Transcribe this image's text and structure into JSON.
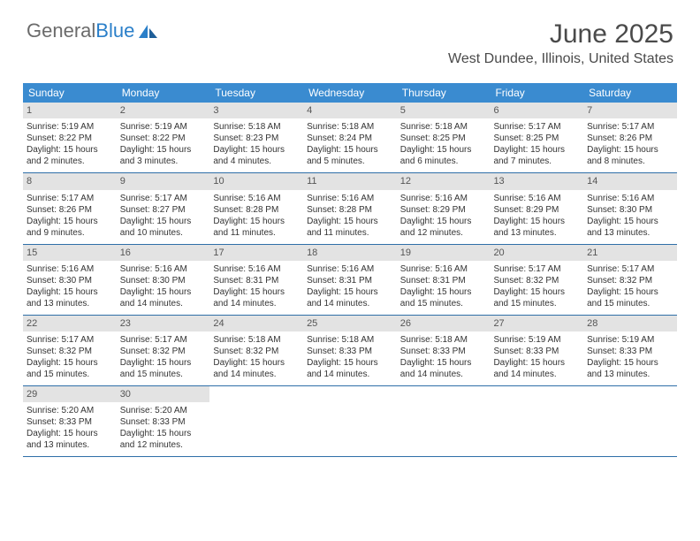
{
  "logo": {
    "part1": "General",
    "part2": "Blue"
  },
  "title": "June 2025",
  "location": "West Dundee, Illinois, United States",
  "colors": {
    "header_bg": "#3a8bd0",
    "row_border": "#2f6fa8",
    "daynum_bg": "#e3e3e3",
    "text": "#333333",
    "logo_grey": "#6b6b6b",
    "logo_blue": "#2a7fc9"
  },
  "daysOfWeek": [
    "Sunday",
    "Monday",
    "Tuesday",
    "Wednesday",
    "Thursday",
    "Friday",
    "Saturday"
  ],
  "weeks": [
    [
      {
        "n": "1",
        "sunrise": "5:19 AM",
        "sunset": "8:22 PM",
        "daylight": "15 hours and 2 minutes."
      },
      {
        "n": "2",
        "sunrise": "5:19 AM",
        "sunset": "8:22 PM",
        "daylight": "15 hours and 3 minutes."
      },
      {
        "n": "3",
        "sunrise": "5:18 AM",
        "sunset": "8:23 PM",
        "daylight": "15 hours and 4 minutes."
      },
      {
        "n": "4",
        "sunrise": "5:18 AM",
        "sunset": "8:24 PM",
        "daylight": "15 hours and 5 minutes."
      },
      {
        "n": "5",
        "sunrise": "5:18 AM",
        "sunset": "8:25 PM",
        "daylight": "15 hours and 6 minutes."
      },
      {
        "n": "6",
        "sunrise": "5:17 AM",
        "sunset": "8:25 PM",
        "daylight": "15 hours and 7 minutes."
      },
      {
        "n": "7",
        "sunrise": "5:17 AM",
        "sunset": "8:26 PM",
        "daylight": "15 hours and 8 minutes."
      }
    ],
    [
      {
        "n": "8",
        "sunrise": "5:17 AM",
        "sunset": "8:26 PM",
        "daylight": "15 hours and 9 minutes."
      },
      {
        "n": "9",
        "sunrise": "5:17 AM",
        "sunset": "8:27 PM",
        "daylight": "15 hours and 10 minutes."
      },
      {
        "n": "10",
        "sunrise": "5:16 AM",
        "sunset": "8:28 PM",
        "daylight": "15 hours and 11 minutes."
      },
      {
        "n": "11",
        "sunrise": "5:16 AM",
        "sunset": "8:28 PM",
        "daylight": "15 hours and 11 minutes."
      },
      {
        "n": "12",
        "sunrise": "5:16 AM",
        "sunset": "8:29 PM",
        "daylight": "15 hours and 12 minutes."
      },
      {
        "n": "13",
        "sunrise": "5:16 AM",
        "sunset": "8:29 PM",
        "daylight": "15 hours and 13 minutes."
      },
      {
        "n": "14",
        "sunrise": "5:16 AM",
        "sunset": "8:30 PM",
        "daylight": "15 hours and 13 minutes."
      }
    ],
    [
      {
        "n": "15",
        "sunrise": "5:16 AM",
        "sunset": "8:30 PM",
        "daylight": "15 hours and 13 minutes."
      },
      {
        "n": "16",
        "sunrise": "5:16 AM",
        "sunset": "8:30 PM",
        "daylight": "15 hours and 14 minutes."
      },
      {
        "n": "17",
        "sunrise": "5:16 AM",
        "sunset": "8:31 PM",
        "daylight": "15 hours and 14 minutes."
      },
      {
        "n": "18",
        "sunrise": "5:16 AM",
        "sunset": "8:31 PM",
        "daylight": "15 hours and 14 minutes."
      },
      {
        "n": "19",
        "sunrise": "5:16 AM",
        "sunset": "8:31 PM",
        "daylight": "15 hours and 15 minutes."
      },
      {
        "n": "20",
        "sunrise": "5:17 AM",
        "sunset": "8:32 PM",
        "daylight": "15 hours and 15 minutes."
      },
      {
        "n": "21",
        "sunrise": "5:17 AM",
        "sunset": "8:32 PM",
        "daylight": "15 hours and 15 minutes."
      }
    ],
    [
      {
        "n": "22",
        "sunrise": "5:17 AM",
        "sunset": "8:32 PM",
        "daylight": "15 hours and 15 minutes."
      },
      {
        "n": "23",
        "sunrise": "5:17 AM",
        "sunset": "8:32 PM",
        "daylight": "15 hours and 15 minutes."
      },
      {
        "n": "24",
        "sunrise": "5:18 AM",
        "sunset": "8:32 PM",
        "daylight": "15 hours and 14 minutes."
      },
      {
        "n": "25",
        "sunrise": "5:18 AM",
        "sunset": "8:33 PM",
        "daylight": "15 hours and 14 minutes."
      },
      {
        "n": "26",
        "sunrise": "5:18 AM",
        "sunset": "8:33 PM",
        "daylight": "15 hours and 14 minutes."
      },
      {
        "n": "27",
        "sunrise": "5:19 AM",
        "sunset": "8:33 PM",
        "daylight": "15 hours and 14 minutes."
      },
      {
        "n": "28",
        "sunrise": "5:19 AM",
        "sunset": "8:33 PM",
        "daylight": "15 hours and 13 minutes."
      }
    ],
    [
      {
        "n": "29",
        "sunrise": "5:20 AM",
        "sunset": "8:33 PM",
        "daylight": "15 hours and 13 minutes."
      },
      {
        "n": "30",
        "sunrise": "5:20 AM",
        "sunset": "8:33 PM",
        "daylight": "15 hours and 12 minutes."
      },
      null,
      null,
      null,
      null,
      null
    ]
  ],
  "labels": {
    "sunrise": "Sunrise: ",
    "sunset": "Sunset: ",
    "daylight": "Daylight: "
  }
}
